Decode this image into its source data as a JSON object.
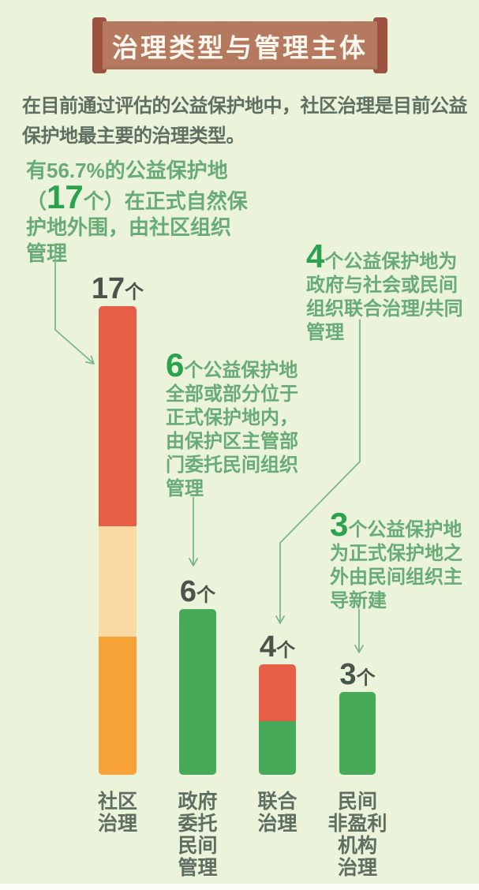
{
  "header": {
    "title": "治理类型与管理主体"
  },
  "intro": {
    "lines": [
      "在目前通过评估的公益保护地中，社区治理是目前公益",
      "保护地最主要的治理类型。"
    ]
  },
  "annotations": [
    {
      "id": "community",
      "full_text": "有56.7%的公益保护地（17个）在正式自然保护地外围，由社区组织管理",
      "lines": [
        {
          "t": "有56.7%的公益保护地"
        },
        {
          "pre": "（",
          "big": "17",
          "t": "个）在正式自然保"
        },
        {
          "t": "护地外围，由社区组织"
        },
        {
          "t": "管理"
        }
      ]
    },
    {
      "id": "delegated",
      "full_text": "6个公益保护地全部或部分位于正式保护地内，由保护区主管部门委托民间组织管理",
      "lines": [
        {
          "big": "6",
          "t": "个公益保护地"
        },
        {
          "t": "全部或部分位于"
        },
        {
          "t": "正式保护地内，"
        },
        {
          "t": "由保护区主管部"
        },
        {
          "t": "门委托民间组织"
        },
        {
          "t": "管理"
        }
      ]
    },
    {
      "id": "joint",
      "full_text": "4个公益保护地为政府与社会或民间组织联合治理/共同管理",
      "lines": [
        {
          "big": "4",
          "t": "个公益保护地为"
        },
        {
          "t": "政府与社会或民间"
        },
        {
          "t": "组织联合治理/共同"
        },
        {
          "t": "管理"
        }
      ]
    },
    {
      "id": "ngo",
      "full_text": "3个公益保护地为正式保护地之外由民间组织主导新建",
      "lines": [
        {
          "big": "3",
          "t": "个公益保护地"
        },
        {
          "t": "为正式保护地之"
        },
        {
          "t": "外由民间组织主"
        },
        {
          "t": "导新建"
        }
      ]
    }
  ],
  "chart_data": {
    "type": "bar",
    "title": "治理类型与管理主体",
    "categories": [
      "社区治理",
      "政府委托民间管理",
      "联合治理",
      "民间非盈利机构治理"
    ],
    "values": [
      17,
      6,
      4,
      3
    ],
    "unit_suffix": "个",
    "community_share_percent": "56.7%",
    "category_label_lines": [
      [
        "社区",
        "治理"
      ],
      [
        "政府",
        "委托",
        "民间",
        "管理"
      ],
      [
        "联合",
        "治理"
      ],
      [
        "民间",
        "非盈利",
        "机构",
        "治理"
      ]
    ],
    "stacked_segments": [
      [
        {
          "color_key": "red",
          "fraction": 0.47,
          "approx_value": 8
        },
        {
          "color_key": "cream",
          "fraction": 0.236,
          "approx_value": 4
        },
        {
          "color_key": "orange",
          "fraction": 0.294,
          "approx_value": 5
        }
      ],
      [
        {
          "color_key": "green",
          "fraction": 1.0,
          "approx_value": 6
        }
      ],
      [
        {
          "color_key": "red",
          "fraction": 0.515,
          "approx_value": 2
        },
        {
          "color_key": "green",
          "fraction": 0.485,
          "approx_value": 2
        }
      ],
      [
        {
          "color_key": "green",
          "fraction": 1.0,
          "approx_value": 3
        }
      ]
    ],
    "ylim": [
      0,
      17
    ],
    "axes_visible": false,
    "grid": false,
    "legend": "none"
  },
  "colors": {
    "page_bg": "#ebf4db",
    "banner_bg": "#b5795f",
    "banner_post": "#9d5140",
    "banner_title_text": "#fdf7ee",
    "dark_text": "#5e6e61",
    "value_label_text": "#49544b",
    "annotation_text": "#68ab77",
    "annotation_number": "#2ba24e",
    "arrow": "#7cb58a",
    "red": "#e75e46",
    "cream": "#fbd9a2",
    "orange": "#f7a139",
    "green": "#47aa59"
  }
}
